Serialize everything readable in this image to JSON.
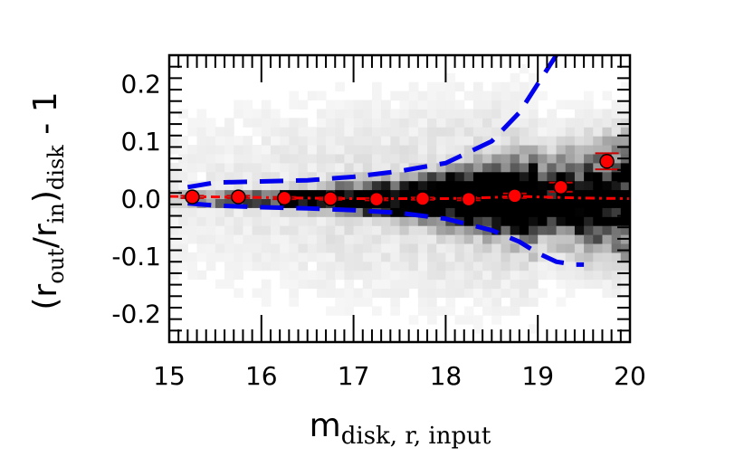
{
  "chart_data": {
    "type": "scatter",
    "title": "",
    "xlabel": {
      "base": "m",
      "subscript": "disk, r, input"
    },
    "ylabel": {
      "parts": [
        {
          "text": "(r",
          "sub": false
        },
        {
          "text": "out",
          "sub": true
        },
        {
          "text": "/r",
          "sub": false
        },
        {
          "text": "in",
          "sub": true
        },
        {
          "text": ")",
          "sub": false
        },
        {
          "text": "disk",
          "sub": true
        },
        {
          "text": " - 1",
          "sub": false
        }
      ]
    },
    "xlim": [
      15,
      20
    ],
    "ylim": [
      -0.25,
      0.25
    ],
    "x_ticks": [
      15,
      16,
      17,
      18,
      19,
      20
    ],
    "x_tick_labels": [
      "15",
      "16",
      "17",
      "18",
      "19",
      "20"
    ],
    "y_ticks": [
      -0.2,
      -0.1,
      0.0,
      0.1,
      0.2
    ],
    "y_tick_labels": [
      "-0.2",
      "-0.1",
      "0.0",
      "0.1",
      "0.2"
    ],
    "grid": false,
    "colors": {
      "points": "#ff0000",
      "error_bars": "#cc0000",
      "median_line": "#ff0000",
      "sigma_lines": "#0000ee",
      "density": "#000000"
    },
    "series": [
      {
        "kind": "binned-median-points",
        "x": [
          15.25,
          15.75,
          16.25,
          16.75,
          17.25,
          17.75,
          18.25,
          18.75,
          19.25,
          19.75
        ],
        "y": [
          0.003,
          0.003,
          0.001,
          0.0,
          -0.001,
          0.0,
          -0.001,
          0.005,
          0.02,
          0.065
        ],
        "yerr": [
          0.002,
          0.002,
          0.002,
          0.002,
          0.002,
          0.002,
          0.002,
          0.004,
          0.008,
          0.014
        ]
      },
      {
        "kind": "median-dash-dot-line",
        "x": [
          15.0,
          15.5,
          16.0,
          16.5,
          17.0,
          17.5,
          18.0,
          18.5,
          18.8,
          19.0,
          19.5,
          20.0
        ],
        "y": [
          0.004,
          0.003,
          0.002,
          0.001,
          0.0,
          0.0,
          0.0,
          0.002,
          0.004,
          0.003,
          0.001,
          0.0
        ]
      },
      {
        "kind": "upper-dashed-envelope",
        "x": [
          15.2,
          15.5,
          16.0,
          16.5,
          17.0,
          17.5,
          18.0,
          18.5,
          18.8,
          19.0,
          19.2
        ],
        "y": [
          0.02,
          0.028,
          0.03,
          0.032,
          0.038,
          0.048,
          0.062,
          0.1,
          0.15,
          0.2,
          0.25
        ]
      },
      {
        "kind": "lower-dashed-envelope",
        "x": [
          15.2,
          15.5,
          16.0,
          16.5,
          17.0,
          17.5,
          18.0,
          18.5,
          18.8,
          19.0,
          19.2,
          19.4,
          19.5
        ],
        "y": [
          -0.008,
          -0.012,
          -0.015,
          -0.017,
          -0.02,
          -0.025,
          -0.035,
          -0.055,
          -0.075,
          -0.095,
          -0.11,
          -0.115,
          -0.115
        ]
      }
    ]
  }
}
